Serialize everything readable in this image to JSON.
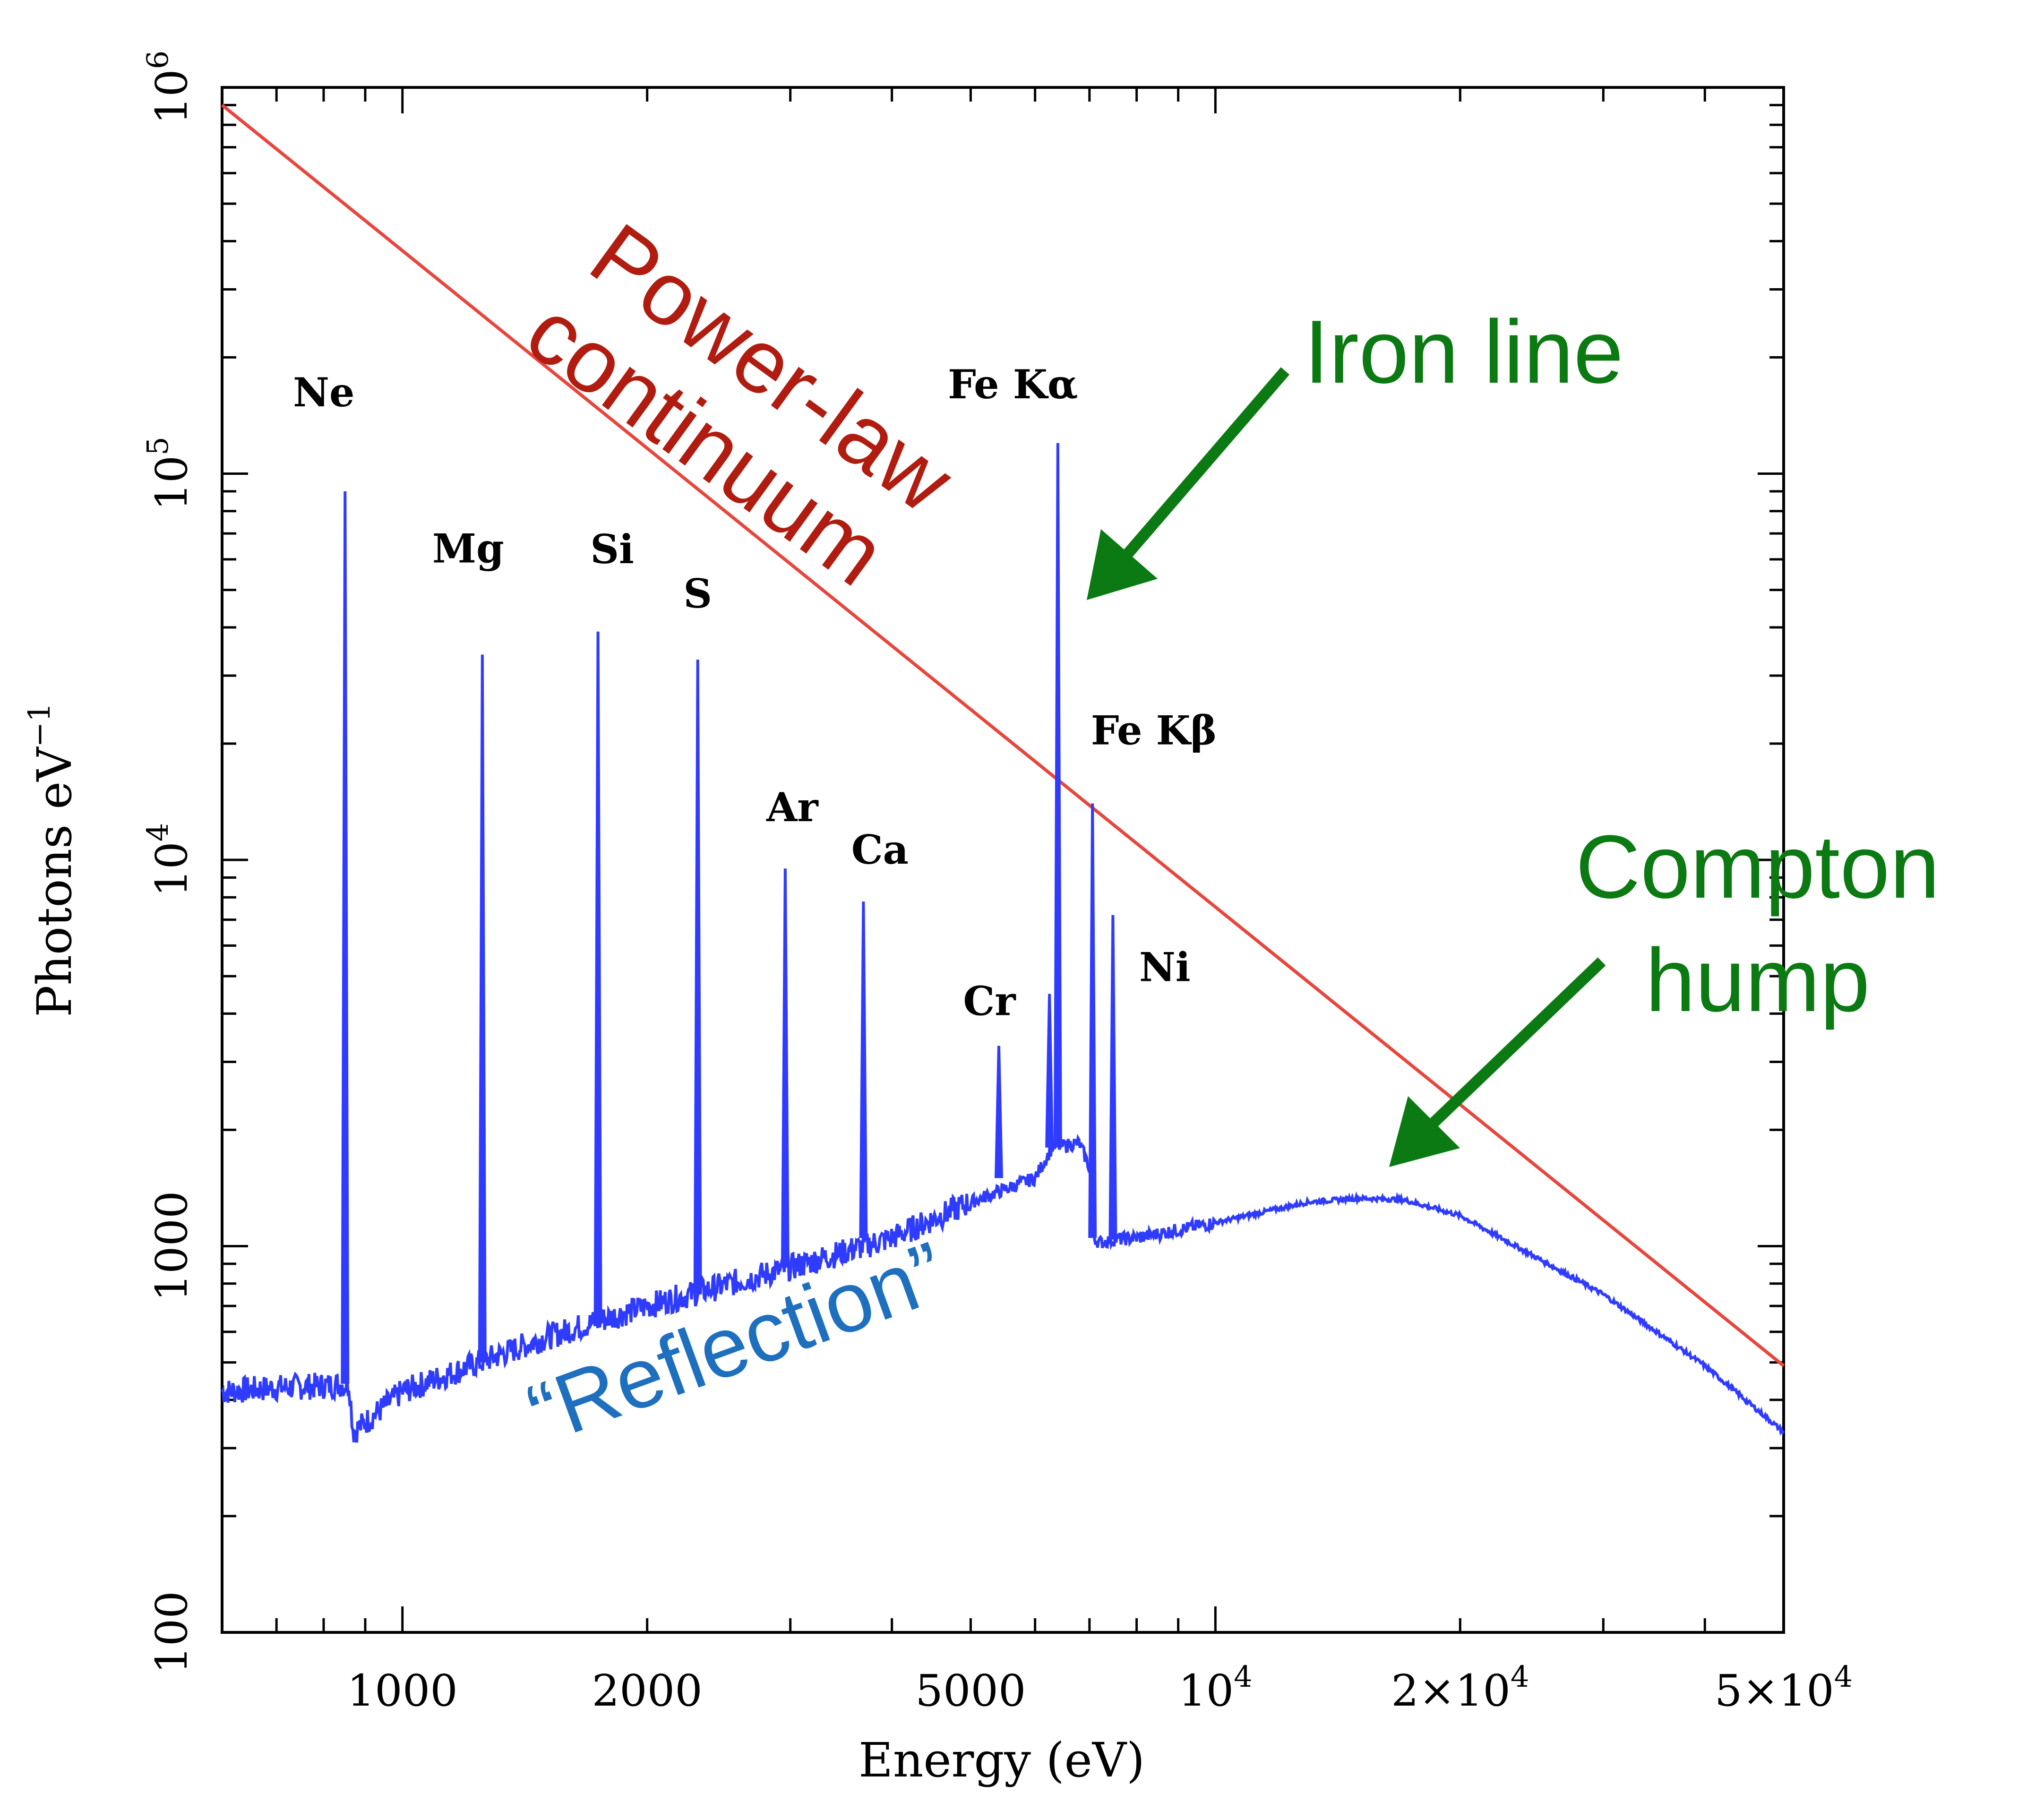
{
  "chart_data": {
    "type": "line",
    "xlabel": "Energy (eV)",
    "ylabel": "Photons eV",
    "ylabel_exponent": "−1",
    "xscale": "log",
    "yscale": "log",
    "xlim": [
      600,
      50000
    ],
    "ylim": [
      100,
      1000000
    ],
    "grid": false,
    "x_ticks": [
      {
        "value": 1000,
        "label": "1000"
      },
      {
        "value": 2000,
        "label": "2000"
      },
      {
        "value": 5000,
        "label": "5000"
      },
      {
        "value": 10000,
        "label": "10",
        "sup": "4"
      },
      {
        "value": 20000,
        "label": "2×10",
        "sup": "4"
      },
      {
        "value": 50000,
        "label": "5×10",
        "sup": "4"
      }
    ],
    "y_ticks": [
      {
        "value": 100,
        "label": "100"
      },
      {
        "value": 1000,
        "label": "1000"
      },
      {
        "value": 10000,
        "label": "10",
        "sup": "4"
      },
      {
        "value": 100000,
        "label": "10",
        "sup": "5"
      },
      {
        "value": 1000000,
        "label": "10",
        "sup": "6"
      }
    ],
    "colors": {
      "power_law": "#e8463c",
      "reflection": "#2f3cff",
      "annotation_green": "#0c7a12",
      "annotation_red": "#b01c10",
      "annotation_blue": "#1f6fbf"
    },
    "series": [
      {
        "key": "power_law",
        "x": [
          600,
          50000
        ],
        "y": [
          900000,
          490
        ]
      },
      {
        "key": "reflection",
        "x": [
          600,
          700,
          800,
          860,
          870,
          1000,
          1500,
          2000,
          3000,
          4000,
          5000,
          6000,
          6300,
          6800,
          7000,
          7100,
          7200,
          7500,
          8000,
          10000,
          13000,
          15000,
          17000,
          20000,
          30000,
          40000,
          50000
        ],
        "y": [
          420,
          430,
          435,
          440,
          330,
          420,
          580,
          700,
          880,
          1050,
          1300,
          1500,
          1800,
          1850,
          1600,
          1050,
          1020,
          1040,
          1050,
          1150,
          1300,
          1330,
          1320,
          1200,
          750,
          490,
          330
        ]
      }
    ],
    "emission_lines": [
      {
        "name": "Ne",
        "energy": 850,
        "peak": 90000,
        "base": 440
      },
      {
        "name": "Mg",
        "energy": 1254,
        "peak": 34000,
        "base": 500
      },
      {
        "name": "Si",
        "energy": 1740,
        "peak": 39000,
        "base": 640
      },
      {
        "name": "S",
        "energy": 2308,
        "peak": 33000,
        "base": 750
      },
      {
        "name": "Ar",
        "energy": 2957,
        "peak": 9500,
        "base": 880
      },
      {
        "name": "Ca",
        "energy": 3690,
        "peak": 7800,
        "base": 1050
      },
      {
        "name": "Cr",
        "energy": 5415,
        "peak": 3300,
        "base": 1500
      },
      {
        "name": "Fe Kα",
        "energy": 6400,
        "peak": 120000,
        "base": 1800
      },
      {
        "name": "Fe Kβ",
        "energy": 7060,
        "peak": 14000,
        "base": 1050
      },
      {
        "name": "Ni",
        "energy": 7480,
        "peak": 7200,
        "base": 1040
      }
    ],
    "extra_spikes": [
      {
        "energy": 6250,
        "peak": 4500,
        "base": 1800
      }
    ],
    "line_labels": [
      {
        "name": "Ne",
        "text": "Ne"
      },
      {
        "name": "Mg",
        "text": "Mg"
      },
      {
        "name": "Si",
        "text": "Si"
      },
      {
        "name": "S",
        "text": "S"
      },
      {
        "name": "Ar",
        "text": "Ar"
      },
      {
        "name": "Ca",
        "text": "Ca"
      },
      {
        "name": "Cr",
        "text": "Cr"
      },
      {
        "name": "FeKa",
        "text": "Fe Kα"
      },
      {
        "name": "FeKb",
        "text": "Fe Kβ"
      },
      {
        "name": "Ni",
        "text": "Ni"
      }
    ],
    "annotations": {
      "power_law": [
        "Power-law",
        "continuum"
      ],
      "iron_line": "Iron line",
      "compton": [
        "Compton",
        "hump"
      ],
      "reflection": "“Reflection”"
    }
  }
}
